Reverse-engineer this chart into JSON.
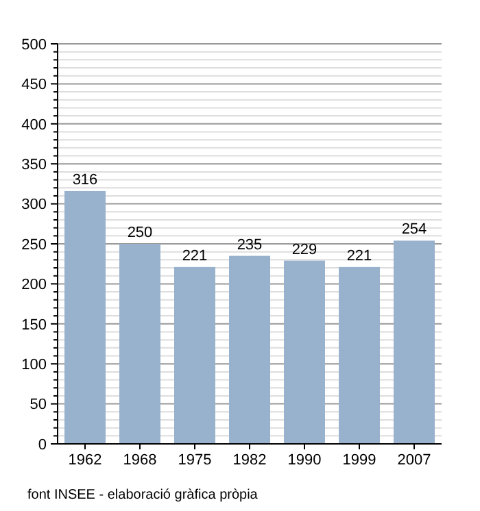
{
  "chart_data": {
    "type": "bar",
    "categories": [
      "1962",
      "1968",
      "1975",
      "1982",
      "1990",
      "1999",
      "2007"
    ],
    "values": [
      316,
      250,
      221,
      235,
      229,
      221,
      254
    ],
    "color": "#98b1cc",
    "data_labels": true,
    "grid": true,
    "ylim": [
      0,
      500
    ],
    "yticks": [
      0,
      {
        "value": 10,
        "label": null
      },
      {
        "value": 20,
        "label": null
      },
      {
        "value": 30,
        "label": null
      },
      {
        "value": 40,
        "label": null
      },
      50,
      {
        "value": 60,
        "label": null
      },
      {
        "value": 70,
        "label": null
      },
      {
        "value": 80,
        "label": null
      },
      {
        "value": 90,
        "label": null
      },
      100,
      {
        "value": 110,
        "label": null
      },
      {
        "value": 120,
        "label": null
      },
      {
        "value": 130,
        "label": null
      },
      {
        "value": 140,
        "label": null
      },
      150,
      {
        "value": 160,
        "label": null
      },
      {
        "value": 170,
        "label": null
      },
      {
        "value": 180,
        "label": null
      },
      {
        "value": 190,
        "label": null
      },
      200,
      {
        "value": 210,
        "label": null
      },
      {
        "value": 220,
        "label": null
      },
      {
        "value": 230,
        "label": null
      },
      {
        "value": 240,
        "label": null
      },
      250,
      {
        "value": 260,
        "label": null
      },
      {
        "value": 270,
        "label": null
      },
      {
        "value": 280,
        "label": null
      },
      {
        "value": 290,
        "label": null
      },
      300,
      {
        "value": 310,
        "label": null
      },
      {
        "value": 320,
        "label": null
      },
      {
        "value": 330,
        "label": null
      },
      {
        "value": 340,
        "label": null
      },
      350,
      {
        "value": 360,
        "label": null
      },
      {
        "value": 370,
        "label": null
      },
      {
        "value": 380,
        "label": null
      },
      {
        "value": 390,
        "label": null
      },
      400,
      {
        "value": 410,
        "label": null
      },
      {
        "value": 420,
        "label": null
      },
      {
        "value": 430,
        "label": null
      },
      {
        "value": 440,
        "label": null
      },
      450,
      {
        "value": 460,
        "label": null
      },
      {
        "value": 470,
        "label": null
      },
      {
        "value": 480,
        "label": null
      },
      {
        "value": 490,
        "label": null
      },
      500
    ],
    "annotations": [
      "font INSEE - elaboració gràfica pròpia"
    ]
  }
}
